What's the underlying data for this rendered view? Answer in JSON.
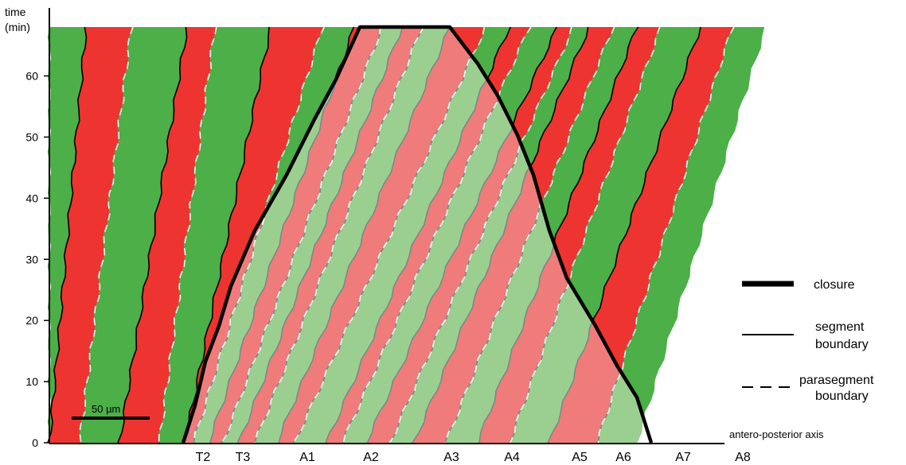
{
  "axis": {
    "y_title_line1": "time",
    "y_title_line2": "(min)",
    "y_ticks": [
      "0",
      "10",
      "20",
      "30",
      "40",
      "50",
      "60"
    ],
    "x_title": "antero-posterior axis",
    "x_labels": [
      "T2",
      "T3",
      "A1",
      "A2",
      "A3",
      "A4",
      "A5",
      "A6",
      "A7",
      "A8"
    ]
  },
  "scale_bar": {
    "label": "50 µm"
  },
  "legend": [
    {
      "key": "closure",
      "label_lines": [
        "closure"
      ]
    },
    {
      "key": "segment",
      "label_lines": [
        "segment",
        "boundary"
      ]
    },
    {
      "key": "parasegment",
      "label_lines": [
        "parasegment",
        "boundary"
      ]
    }
  ],
  "colors": {
    "green": "#4caf47",
    "red": "#ee3430",
    "light_green": "#9bcf8f",
    "pink": "#f07b7b"
  }
}
